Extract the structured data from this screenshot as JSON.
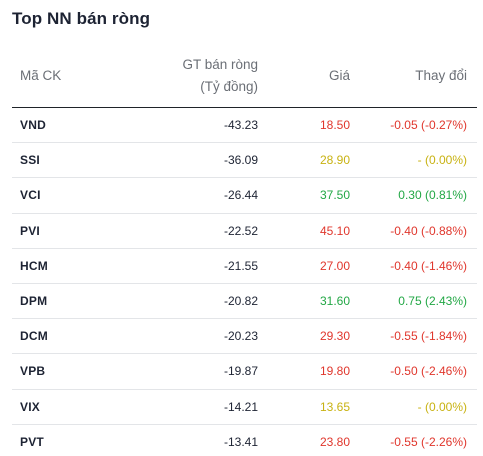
{
  "title": "Top NN bán ròng",
  "columns": {
    "code": "Mã CK",
    "value_line1": "GT bán ròng",
    "value_line2": "(Tỷ đồng)",
    "price": "Giá",
    "change": "Thay đổi"
  },
  "colors": {
    "down": "#e0362c",
    "up": "#22a745",
    "reference": "#c8b212"
  },
  "rows": [
    {
      "code": "VND",
      "value": "-43.23",
      "price": "18.50",
      "change": "-0.05 (-0.27%)",
      "trend": "down"
    },
    {
      "code": "SSI",
      "value": "-36.09",
      "price": "28.90",
      "change": "- (0.00%)",
      "trend": "ref"
    },
    {
      "code": "VCI",
      "value": "-26.44",
      "price": "37.50",
      "change": "0.30 (0.81%)",
      "trend": "up"
    },
    {
      "code": "PVI",
      "value": "-22.52",
      "price": "45.10",
      "change": "-0.40 (-0.88%)",
      "trend": "down"
    },
    {
      "code": "HCM",
      "value": "-21.55",
      "price": "27.00",
      "change": "-0.40 (-1.46%)",
      "trend": "down"
    },
    {
      "code": "DPM",
      "value": "-20.82",
      "price": "31.60",
      "change": "0.75 (2.43%)",
      "trend": "up"
    },
    {
      "code": "DCM",
      "value": "-20.23",
      "price": "29.30",
      "change": "-0.55 (-1.84%)",
      "trend": "down"
    },
    {
      "code": "VPB",
      "value": "-19.87",
      "price": "19.80",
      "change": "-0.50 (-2.46%)",
      "trend": "down"
    },
    {
      "code": "VIX",
      "value": "-14.21",
      "price": "13.65",
      "change": "- (0.00%)",
      "trend": "ref"
    },
    {
      "code": "PVT",
      "value": "-13.41",
      "price": "23.80",
      "change": "-0.55 (-2.26%)",
      "trend": "down"
    }
  ]
}
